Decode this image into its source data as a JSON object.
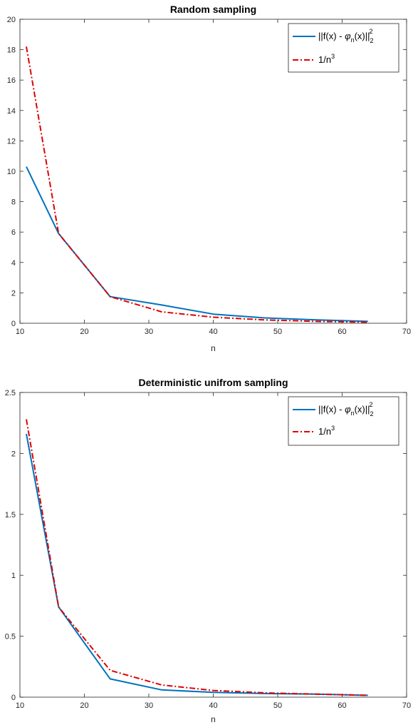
{
  "chart_data": [
    {
      "type": "line",
      "title": "Random sampling",
      "xlabel": "n",
      "ylabel": "",
      "xlim": [
        10,
        70
      ],
      "ylim": [
        0,
        20
      ],
      "xticks": [
        10,
        20,
        30,
        40,
        50,
        60,
        70
      ],
      "yticks": [
        0,
        2,
        4,
        6,
        8,
        10,
        12,
        14,
        16,
        18,
        20
      ],
      "legend_position": "top-right",
      "grid": false,
      "x": [
        11,
        16,
        24,
        32,
        40,
        48,
        56,
        64
      ],
      "series": [
        {
          "name_parts": [
            "||f(x) - ",
            "φ",
            "n",
            "(x)||",
            "2",
            "2"
          ],
          "color": "#0072BD",
          "style": "solid",
          "values": [
            10.3,
            5.9,
            1.75,
            1.2,
            0.6,
            0.35,
            0.22,
            0.12
          ]
        },
        {
          "name_parts": [
            "1/n",
            "3"
          ],
          "color": "#E00000",
          "style": "dashdot",
          "values": [
            18.2,
            5.9,
            1.75,
            0.75,
            0.4,
            0.22,
            0.12,
            0.07
          ]
        }
      ]
    },
    {
      "type": "line",
      "title": "Deterministic unifrom sampling",
      "xlabel": "n",
      "ylabel": "",
      "xlim": [
        10,
        70
      ],
      "ylim": [
        0,
        2.5
      ],
      "xticks": [
        10,
        20,
        30,
        40,
        50,
        60,
        70
      ],
      "yticks": [
        0,
        0.5,
        1,
        1.5,
        2,
        2.5
      ],
      "legend_position": "top-right",
      "grid": false,
      "x": [
        11,
        16,
        24,
        32,
        40,
        48,
        56,
        64
      ],
      "series": [
        {
          "name_parts": [
            "||f(x) - ",
            "φ",
            "n",
            "(x)||",
            "2",
            "2"
          ],
          "color": "#0072BD",
          "style": "solid",
          "values": [
            2.16,
            0.74,
            0.15,
            0.06,
            0.04,
            0.03,
            0.025,
            0.015
          ]
        },
        {
          "name_parts": [
            "1/n",
            "3"
          ],
          "color": "#E00000",
          "style": "dashdot",
          "values": [
            2.28,
            0.74,
            0.22,
            0.1,
            0.055,
            0.035,
            0.025,
            0.015
          ]
        }
      ]
    }
  ]
}
